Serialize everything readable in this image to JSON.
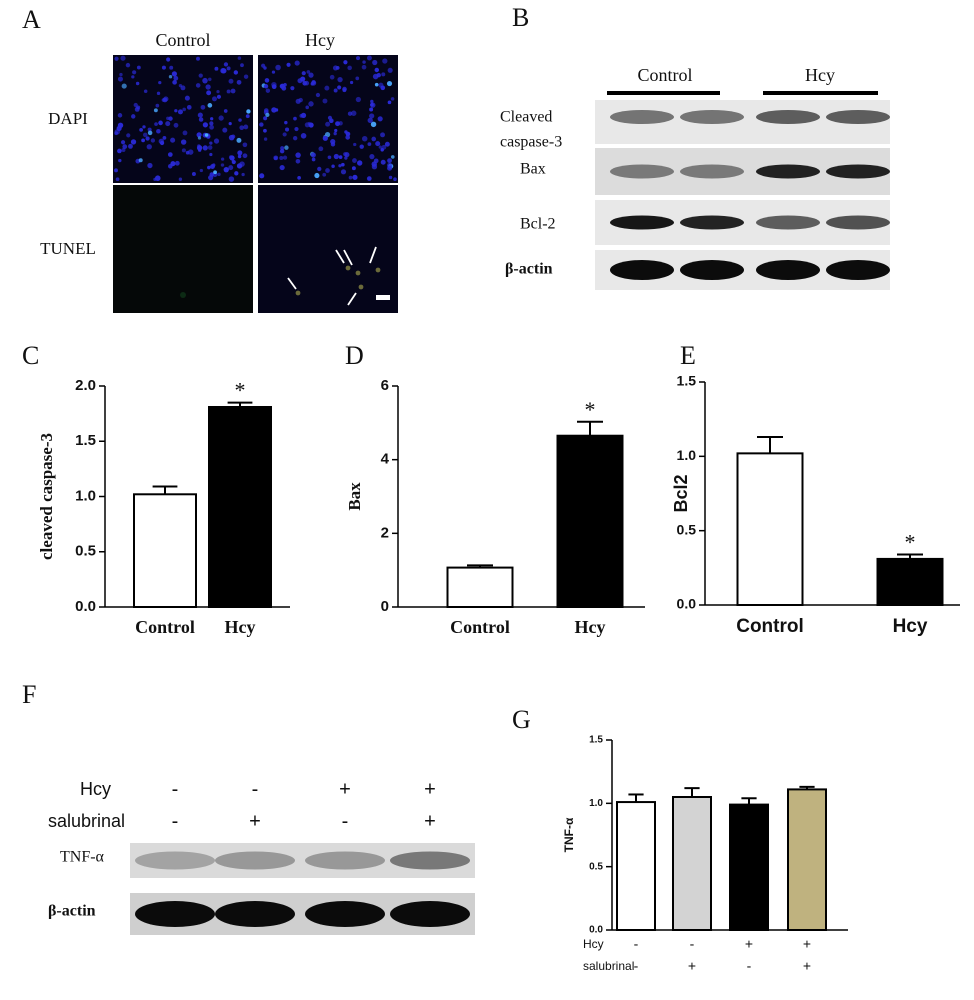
{
  "panel_labels": [
    "A",
    "B",
    "C",
    "D",
    "E",
    "F",
    "G"
  ],
  "panel_a": {
    "columns": [
      "Control",
      "Hcy"
    ],
    "rows": [
      "DAPI",
      "TUNEL"
    ]
  },
  "panel_b": {
    "groups": [
      "Control",
      "Hcy"
    ],
    "rows": [
      [
        "Cleaved",
        "caspase-3"
      ],
      [
        "Bax"
      ],
      [
        "Bcl-2"
      ],
      [
        "β-actin"
      ]
    ]
  },
  "panel_f": {
    "conditions": [
      {
        "name": "Hcy",
        "signs": [
          "-",
          "-",
          "+",
          "+"
        ]
      },
      {
        "name": "salubrinal",
        "signs": [
          "-",
          "+",
          "-",
          "+"
        ]
      }
    ],
    "rows": [
      "TNF-α",
      "β-actin"
    ]
  },
  "chart_data": [
    {
      "type": "bar",
      "ylabel": "cleaved caspase-3",
      "categories": [
        "Control",
        "Hcy"
      ],
      "values": [
        1.02,
        1.81
      ],
      "errors": [
        0.07,
        0.04
      ],
      "colors": [
        "#ffffff",
        "#000000"
      ],
      "significance": [
        null,
        "*"
      ],
      "ylim": [
        0,
        2.0
      ],
      "yticks": [
        {
          "value": 0,
          "label": "0.0"
        },
        0.5,
        {
          "value": 1,
          "label": "1.0"
        },
        1.5,
        {
          "value": 2,
          "label": "2.0"
        }
      ]
    },
    {
      "type": "bar",
      "ylabel": "Bax",
      "categories": [
        "Control",
        "Hcy"
      ],
      "values": [
        1.07,
        4.65
      ],
      "errors": [
        0.06,
        0.38
      ],
      "colors": [
        "#ffffff",
        "#000000"
      ],
      "significance": [
        null,
        "*"
      ],
      "ylim": [
        0,
        6
      ],
      "yticks": [
        0,
        2,
        4,
        6
      ]
    },
    {
      "type": "bar",
      "ylabel": "Bcl2",
      "categories": [
        "Control",
        "Hcy"
      ],
      "values": [
        1.02,
        0.31
      ],
      "errors": [
        0.11,
        0.03
      ],
      "colors": [
        "#ffffff",
        "#000000"
      ],
      "significance": [
        null,
        "*"
      ],
      "ylim": [
        0,
        1.5
      ],
      "yticks": [
        {
          "value": 0,
          "label": "0.0"
        },
        0.5,
        {
          "value": 1,
          "label": "1.0"
        },
        1.5
      ]
    },
    {
      "type": "bar",
      "ylabel": "TNF-α",
      "values": [
        1.01,
        1.05,
        0.99,
        1.11
      ],
      "errors": [
        0.06,
        0.07,
        0.05,
        0.02
      ],
      "colors": [
        "#ffffff",
        "#d3d3d3",
        "#000000",
        "#bfb27f"
      ],
      "conditions": [
        {
          "name": "Hcy",
          "signs": [
            "-",
            "-",
            "+",
            "+"
          ]
        },
        {
          "name": "salubrinal",
          "signs": [
            "-",
            "+",
            "-",
            "+"
          ]
        }
      ],
      "ylim": [
        0,
        1.5
      ],
      "yticks": [
        {
          "value": 0,
          "label": "0.0"
        },
        0.5,
        {
          "value": 1,
          "label": "1.0"
        },
        1.5
      ]
    }
  ]
}
